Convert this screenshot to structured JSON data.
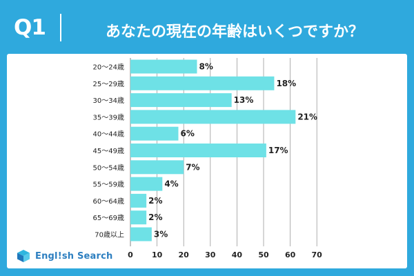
{
  "header": {
    "question_label": "Q1",
    "title": "あなたの現在の年齢はいくつですか？"
  },
  "brand": {
    "name": "Engl!sh Search",
    "icon": "book-cube-icon"
  },
  "colors": {
    "background": "#2fa9dd",
    "bar": "#6ee1e6",
    "grid": "#9a9a9a",
    "text": "#222222"
  },
  "chart_data": {
    "type": "bar",
    "orientation": "horizontal",
    "categories": [
      "20〜24歳",
      "25〜29歳",
      "30〜34歳",
      "35〜39歳",
      "40〜44歳",
      "45〜49歳",
      "50〜54歳",
      "55〜59歳",
      "60〜64歳",
      "65〜69歳",
      "70歳以上"
    ],
    "values": [
      25,
      54,
      38,
      62,
      18,
      51,
      20,
      12,
      6,
      6,
      8
    ],
    "data_labels": [
      "8%",
      "18%",
      "13%",
      "21%",
      "6%",
      "17%",
      "7%",
      "4%",
      "2%",
      "2%",
      "3%"
    ],
    "xticks": [
      0,
      10,
      20,
      30,
      40,
      50,
      60,
      70
    ],
    "xlim": [
      0,
      70
    ],
    "grid": true,
    "title": "あなたの現在の年齢はいくつですか？",
    "xlabel": "",
    "ylabel": ""
  }
}
